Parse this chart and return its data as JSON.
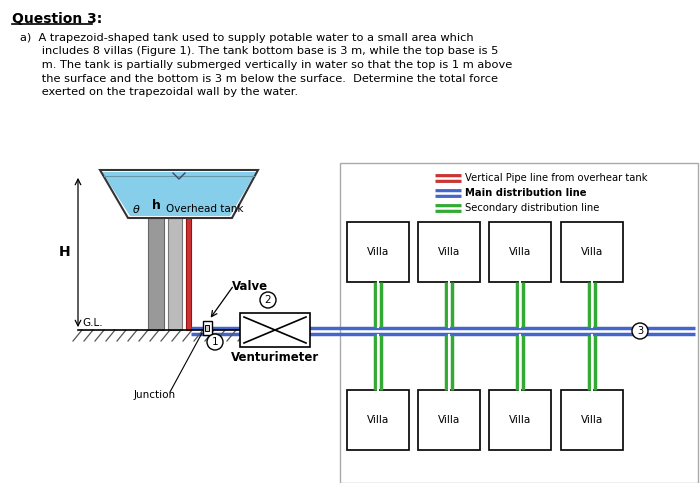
{
  "bg_color": "#ffffff",
  "tank_fill_color": "#87ceeb",
  "tank_outline_color": "#333333",
  "pipe_red": "#cc3333",
  "pipe_blue": "#4466cc",
  "pipe_green": "#33aa33",
  "pipe_gray_dark": "#888888",
  "pipe_gray_light": "#cccccc",
  "villa_box_color": "#111111",
  "text_color": "#000000",
  "legend_items": [
    {
      "color": "#cc3333",
      "label": "Vertical Pipe line from overhear tank"
    },
    {
      "color": "#4466cc",
      "label": "Main distribution line",
      "bold": true
    },
    {
      "color": "#33aa33",
      "label": "Secondary distribution line"
    }
  ],
  "question_header": "Question 3:",
  "question_lines": [
    "a)  A trapezoid-shaped tank used to supply potable water to a small area which",
    "      includes 8 villas (Figure 1). The tank bottom base is 3 m, while the top base is 5",
    "      m. The tank is partially submerged vertically in water so that the top is 1 m above",
    "      the surface and the bottom is 3 m below the surface.  Determine the total force",
    "      exerted on the trapezoidal wall by the water."
  ]
}
